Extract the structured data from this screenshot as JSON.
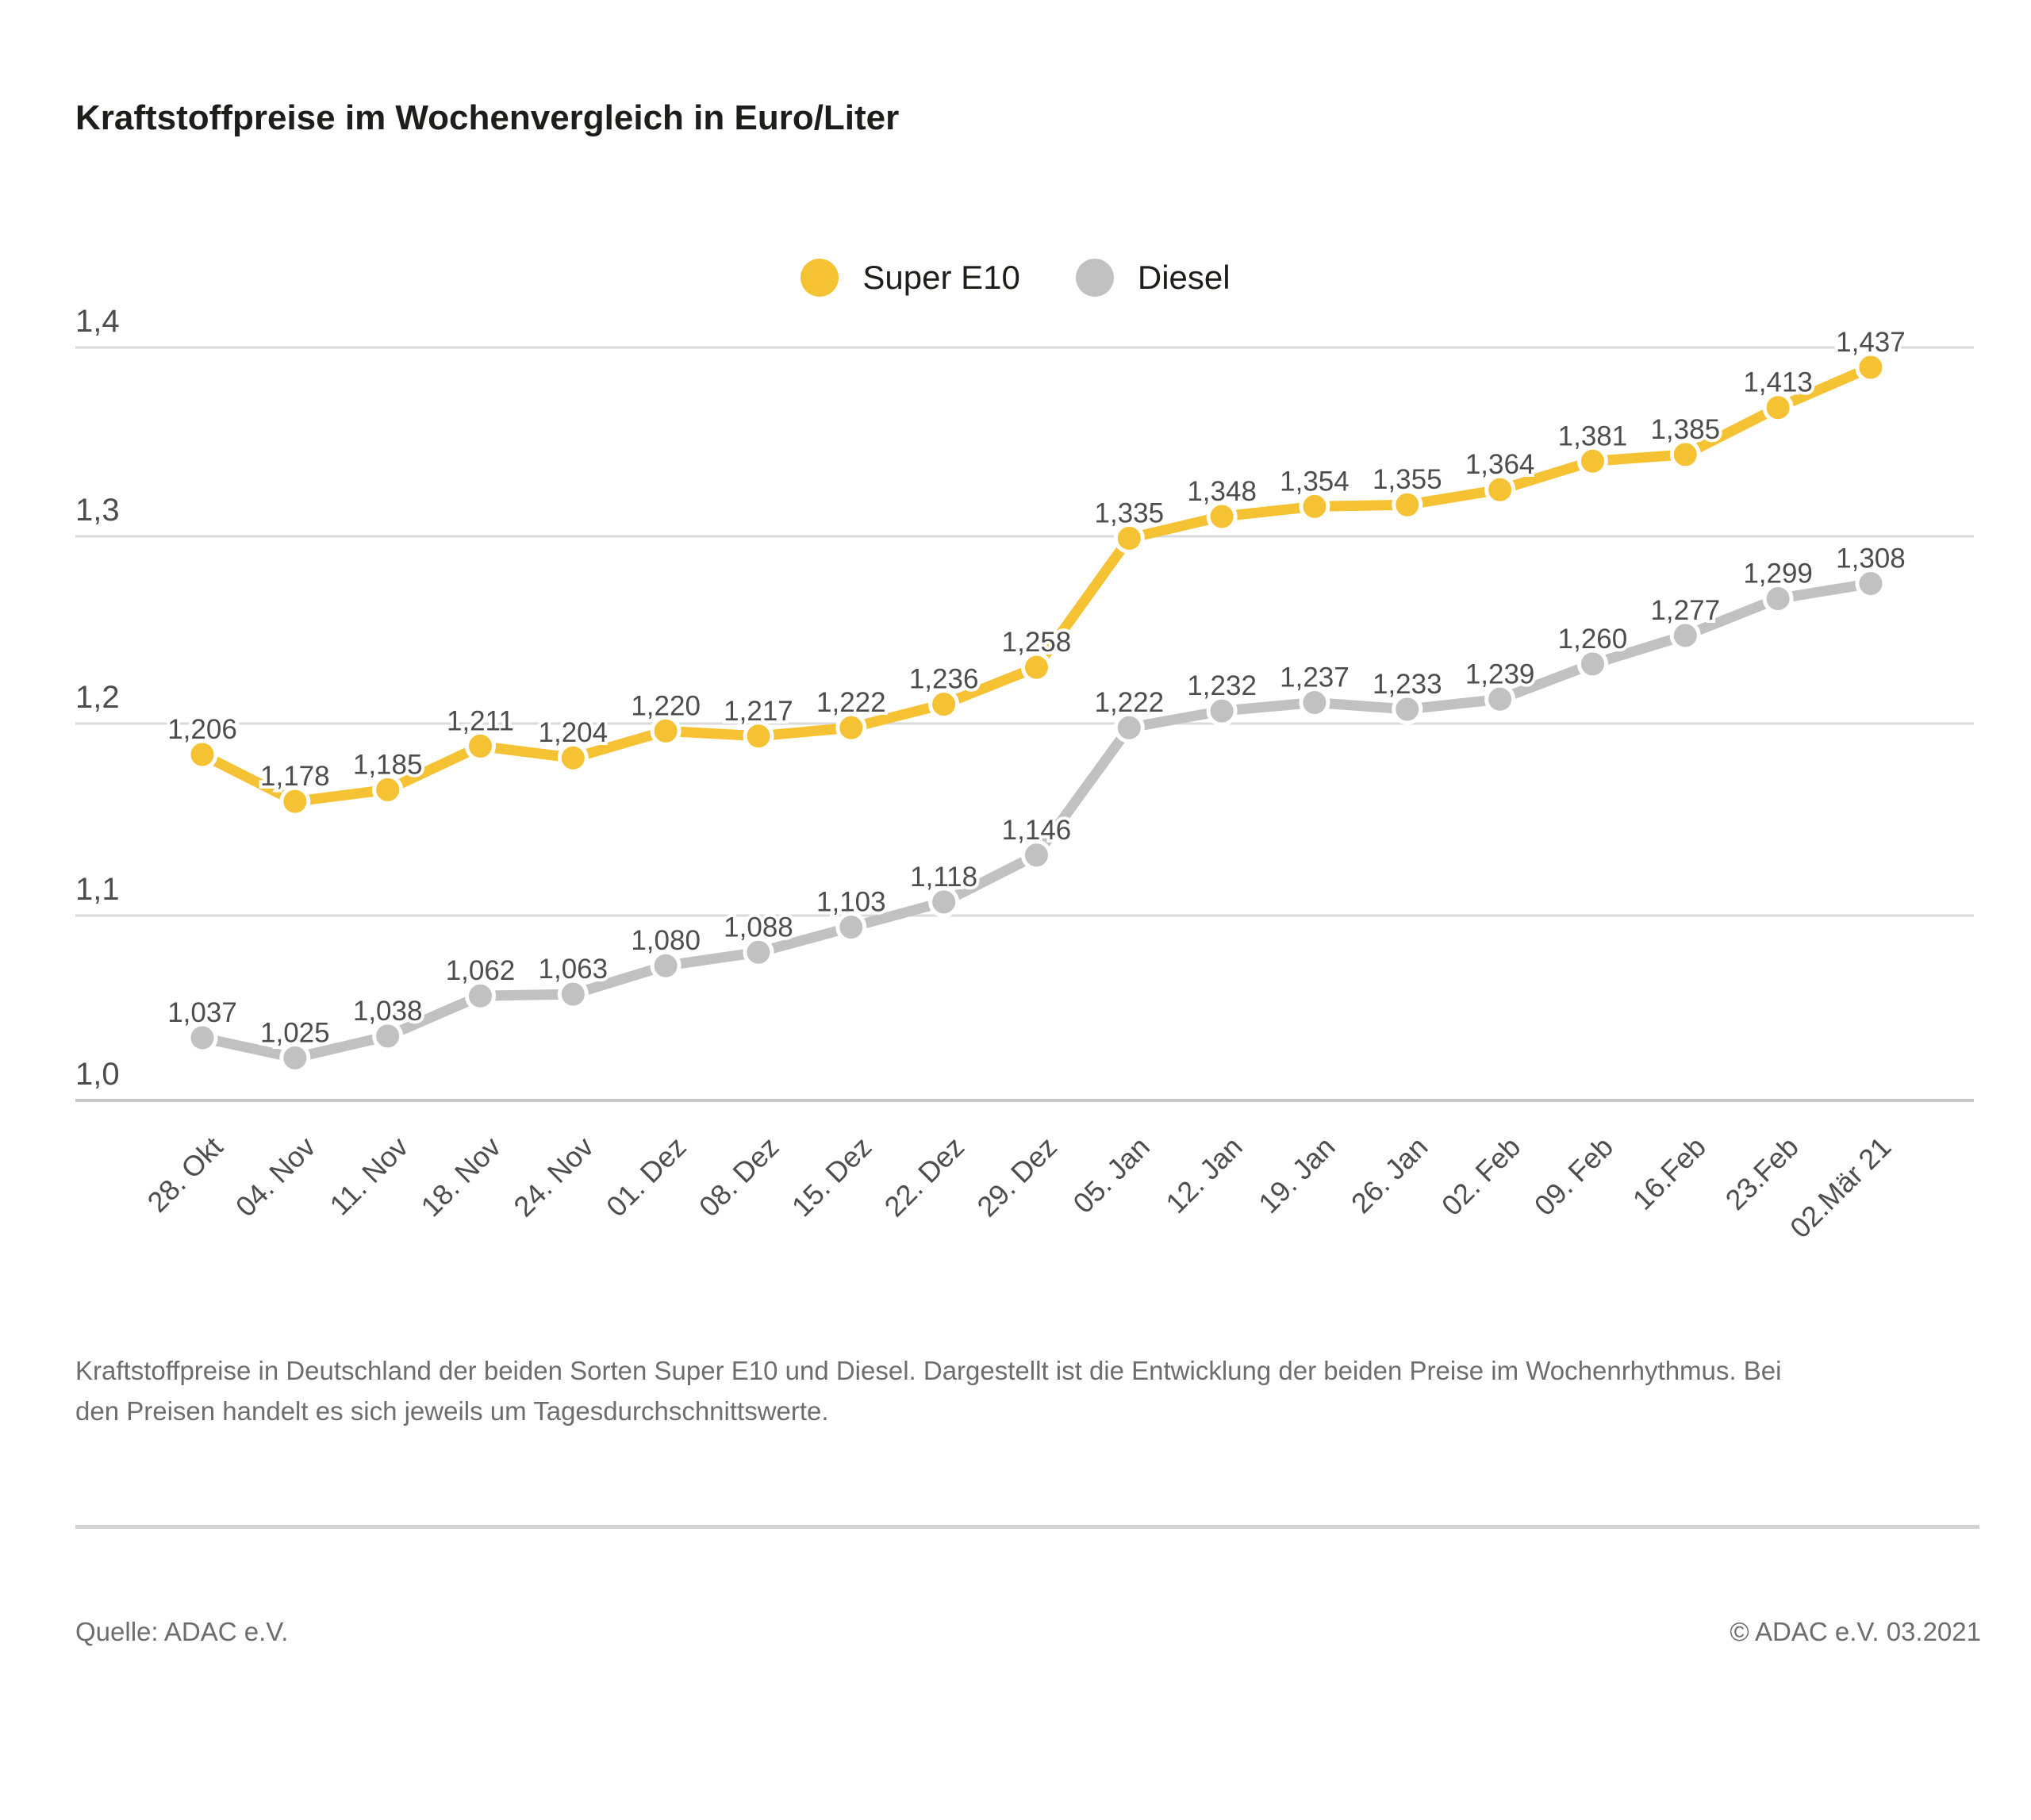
{
  "title": "Kraftstoffpreise im Wochenvergleich in Euro/Liter",
  "legend": {
    "items": [
      {
        "label": "Super E10",
        "color": "#F5C234"
      },
      {
        "label": "Diesel",
        "color": "#C1C1C1"
      }
    ]
  },
  "chart_data": {
    "type": "line",
    "title": "Kraftstoffpreise im Wochenvergleich in Euro/Liter",
    "unit": "Euro/Liter",
    "categories": [
      "28. Okt",
      "04. Nov",
      "11. Nov",
      "18. Nov",
      "24. Nov",
      "01. Dez",
      "08. Dez",
      "15. Dez",
      "22. Dez",
      "29. Dez",
      "05. Jan",
      "12. Jan",
      "19. Jan",
      "26. Jan",
      "02. Feb",
      "09. Feb",
      "16.Feb",
      "23.Feb",
      "02.Mär 21"
    ],
    "series": [
      {
        "name": "Super E10",
        "color": "#F5C234",
        "values": [
          1.206,
          1.178,
          1.185,
          1.211,
          1.204,
          1.22,
          1.217,
          1.222,
          1.236,
          1.258,
          1.335,
          1.348,
          1.354,
          1.355,
          1.364,
          1.381,
          1.385,
          1.413,
          1.437
        ],
        "labels": [
          "1,206",
          "1,178",
          "1,185",
          "1,211",
          "1,204",
          "1,220",
          "1,217",
          "1,222",
          "1,236",
          "1,258",
          "1,335",
          "1,348",
          "1,354",
          "1,355",
          "1,364",
          "1,381",
          "1,385",
          "1,413",
          "1,437"
        ]
      },
      {
        "name": "Diesel",
        "color": "#C1C1C1",
        "values": [
          1.037,
          1.025,
          1.038,
          1.062,
          1.063,
          1.08,
          1.088,
          1.103,
          1.118,
          1.146,
          1.222,
          1.232,
          1.237,
          1.233,
          1.239,
          1.26,
          1.277,
          1.299,
          1.308
        ],
        "labels": [
          "1,037",
          "1,025",
          "1,038",
          "1,062",
          "1,063",
          "1,080",
          "1,088",
          "1,103",
          "1,118",
          "1,146",
          "1,222",
          "1,232",
          "1,237",
          "1,233",
          "1,239",
          "1,260",
          "1,277",
          "1,299",
          "1,308"
        ]
      }
    ],
    "y_axis": {
      "tick_labels": [
        "1,4",
        "1,3",
        "1,2",
        "1,1",
        "1,0"
      ],
      "range": [
        1.0,
        1.45
      ],
      "grid": true
    },
    "legend_position": "top-center"
  },
  "caption": "Kraftstoffpreise in Deutschland der beiden Sorten Super E10 und Diesel. Dargestellt ist die Entwicklung der beiden Preise im Wochenrhythmus. Bei den Preisen handelt es sich jeweils um Tagesdurchschnittswerte.",
  "footer": {
    "source": "Quelle: ADAC e.V.",
    "copyright": "© ADAC e.V. 03.2021"
  },
  "colors": {
    "super_e10": "#F5C234",
    "diesel": "#C1C1C1",
    "gridline": "#DADADA",
    "axis_line": "#C6C6C6",
    "label_text": "#4D4D4D"
  }
}
